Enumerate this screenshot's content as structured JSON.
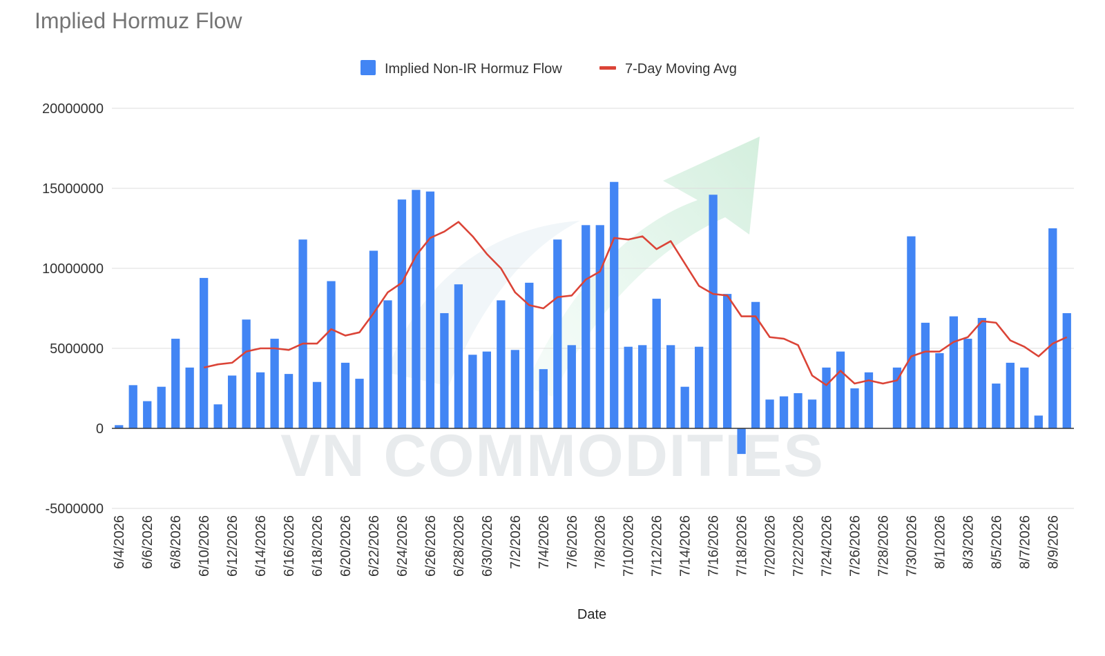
{
  "chart_data": {
    "type": "bar",
    "title": "Implied Hormuz Flow",
    "xlabel": "Date",
    "ylabel": "",
    "ylim": [
      -5000000,
      20000000
    ],
    "yticks": [
      -5000000,
      0,
      5000000,
      10000000,
      15000000,
      20000000
    ],
    "ytick_labels": [
      "-5000000",
      "0",
      "5000000",
      "10000000",
      "15000000",
      "20000000"
    ],
    "grid": true,
    "legend_position": "top",
    "watermark": "VN COMMODITIES",
    "categories": [
      "6/4/2026",
      "6/5/2026",
      "6/6/2026",
      "6/7/2026",
      "6/8/2026",
      "6/9/2026",
      "6/10/2026",
      "6/11/2026",
      "6/12/2026",
      "6/13/2026",
      "6/14/2026",
      "6/15/2026",
      "6/16/2026",
      "6/17/2026",
      "6/18/2026",
      "6/19/2026",
      "6/20/2026",
      "6/21/2026",
      "6/22/2026",
      "6/23/2026",
      "6/24/2026",
      "6/25/2026",
      "6/26/2026",
      "6/27/2026",
      "6/28/2026",
      "6/29/2026",
      "6/30/2026",
      "7/1/2026",
      "7/2/2026",
      "7/3/2026",
      "7/4/2026",
      "7/5/2026",
      "7/6/2026",
      "7/7/2026",
      "7/8/2026",
      "7/9/2026",
      "7/10/2026",
      "7/11/2026",
      "7/12/2026",
      "7/13/2026",
      "7/14/2026",
      "7/15/2026",
      "7/16/2026",
      "7/17/2026",
      "7/18/2026",
      "7/19/2026",
      "7/20/2026",
      "7/21/2026",
      "7/22/2026",
      "7/23/2026",
      "7/24/2026",
      "7/25/2026",
      "7/26/2026",
      "7/27/2026",
      "7/28/2026",
      "7/29/2026",
      "7/30/2026",
      "7/31/2026",
      "8/1/2026",
      "8/2/2026",
      "8/3/2026",
      "8/4/2026",
      "8/5/2026",
      "8/6/2026",
      "8/7/2026",
      "8/8/2026",
      "8/9/2026",
      "8/10/2026"
    ],
    "x_tick_labels_shown": [
      "6/4/2026",
      "6/6/2026",
      "6/8/2026",
      "6/10/2026",
      "6/12/2026",
      "6/14/2026",
      "6/16/2026",
      "6/18/2026",
      "6/20/2026",
      "6/22/2026",
      "6/24/2026",
      "6/26/2026",
      "6/28/2026",
      "6/30/2026",
      "7/2/2026",
      "7/4/2026",
      "7/6/2026",
      "7/8/2026",
      "7/10/2026",
      "7/12/2026",
      "7/14/2026",
      "7/16/2026",
      "7/18/2026",
      "7/20/2026",
      "7/22/2026",
      "7/24/2026",
      "7/26/2026",
      "7/28/2026",
      "7/30/2026",
      "8/1/2026",
      "8/3/2026",
      "8/5/2026",
      "8/7/2026",
      "8/9/2026"
    ],
    "series": [
      {
        "name": "Implied Non-IR Hormuz Flow",
        "type": "bar",
        "color": "#4285f4",
        "values": [
          200000,
          2700000,
          1700000,
          2600000,
          5600000,
          3800000,
          9400000,
          1500000,
          3300000,
          6800000,
          3500000,
          5600000,
          3400000,
          11800000,
          2900000,
          9200000,
          4100000,
          3100000,
          11100000,
          8000000,
          14300000,
          14900000,
          14800000,
          7200000,
          9000000,
          4600000,
          4800000,
          8000000,
          4900000,
          9100000,
          3700000,
          11800000,
          5200000,
          12700000,
          12700000,
          15400000,
          5100000,
          5200000,
          8100000,
          5200000,
          2600000,
          5100000,
          14600000,
          8400000,
          -1600000,
          7900000,
          1800000,
          2000000,
          2200000,
          1800000,
          3800000,
          4800000,
          2500000,
          3500000,
          0,
          3800000,
          12000000,
          6600000,
          4700000,
          7000000,
          5600000,
          6900000,
          2800000,
          4100000,
          3800000,
          800000,
          12500000,
          7200000
        ]
      },
      {
        "name": "7-Day Moving Avg",
        "type": "line",
        "color": "#db4437",
        "values": [
          null,
          null,
          null,
          null,
          null,
          null,
          3800000,
          4000000,
          4100000,
          4800000,
          5000000,
          5000000,
          4900000,
          5300000,
          5300000,
          6200000,
          5800000,
          6000000,
          7200000,
          8500000,
          9100000,
          10800000,
          11900000,
          12300000,
          12900000,
          12000000,
          10900000,
          10000000,
          8500000,
          7700000,
          7500000,
          8200000,
          8300000,
          9300000,
          9800000,
          11900000,
          11800000,
          12000000,
          11200000,
          11700000,
          10300000,
          8900000,
          8400000,
          8300000,
          7000000,
          7000000,
          5700000,
          5600000,
          5200000,
          3300000,
          2700000,
          3600000,
          2800000,
          3000000,
          2800000,
          3000000,
          4500000,
          4800000,
          4800000,
          5400000,
          5700000,
          6700000,
          6600000,
          5500000,
          5100000,
          4500000,
          5300000,
          5700000
        ]
      }
    ]
  }
}
